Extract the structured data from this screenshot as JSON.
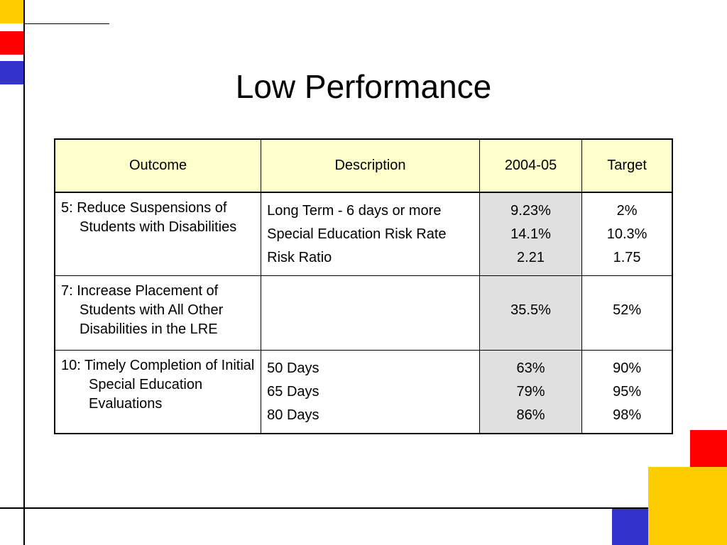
{
  "slide": {
    "title": "Low Performance",
    "colors": {
      "yellow": "#ffcc00",
      "red": "#ff0000",
      "blue": "#3333cc",
      "header_bg": "#ffffcc",
      "shaded_cell": "#e0e0e0"
    }
  },
  "table": {
    "headers": {
      "outcome": "Outcome",
      "description": "Description",
      "year": "2004-05",
      "target": "Target"
    },
    "rows": [
      {
        "outcome": "5: Reduce Suspensions of Students with Disabilities",
        "descriptions": [
          "Long Term - 6 days or more",
          "Special Education Risk Rate",
          "Risk Ratio"
        ],
        "year_values": [
          "9.23%",
          "14.1%",
          "2.21"
        ],
        "target_values": [
          "2%",
          "10.3%",
          "1.75"
        ]
      },
      {
        "outcome": "7: Increase Placement of Students with All Other Disabilities in the LRE",
        "descriptions": [],
        "year_values": [
          "35.5%"
        ],
        "target_values": [
          "52%"
        ]
      },
      {
        "outcome": "10: Timely Completion of Initial Special Education Evaluations",
        "descriptions": [
          "50 Days",
          "65 Days",
          "80 Days"
        ],
        "year_values": [
          "63%",
          "79%",
          "86%"
        ],
        "target_values": [
          "90%",
          "95%",
          "98%"
        ]
      }
    ]
  }
}
